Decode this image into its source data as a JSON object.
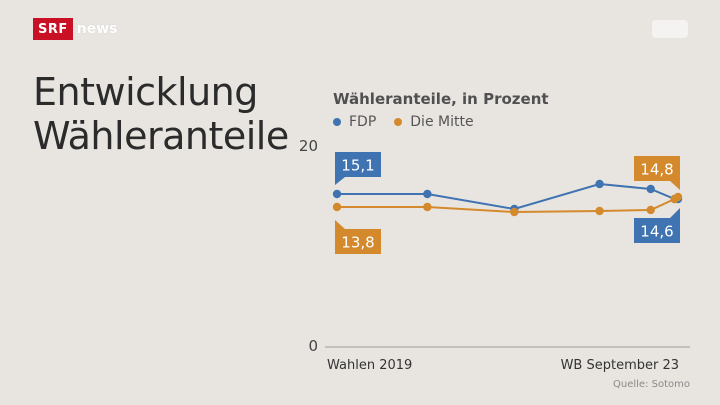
{
  "brand": {
    "srf": "SRF",
    "news": "news"
  },
  "title": {
    "line1": "Entwicklung",
    "line2": "Wähleranteile"
  },
  "source": "Quelle: Sotomo",
  "chart_data": {
    "type": "line",
    "title": "Wähleranteile, in Prozent",
    "xlabel": "",
    "ylabel": "",
    "ylim": [
      0,
      20
    ],
    "y_ticks": [
      "20",
      "0"
    ],
    "x_tick_labels": [
      "Wahlen 2019",
      "WB September 23"
    ],
    "grid": false,
    "legend": "top-left",
    "series": [
      {
        "name": "FDP",
        "color": "#3f73b1",
        "values": [
          15.1,
          15.1,
          13.6,
          16.1,
          15.6,
          14.6,
          14.6
        ],
        "start_label": "15,1",
        "end_label": "14,6"
      },
      {
        "name": "Die Mitte",
        "color": "#d48a2c",
        "values": [
          13.8,
          13.8,
          13.3,
          13.4,
          13.5,
          14.6,
          14.8
        ],
        "start_label": "13,8",
        "end_label": "14,8"
      }
    ]
  }
}
